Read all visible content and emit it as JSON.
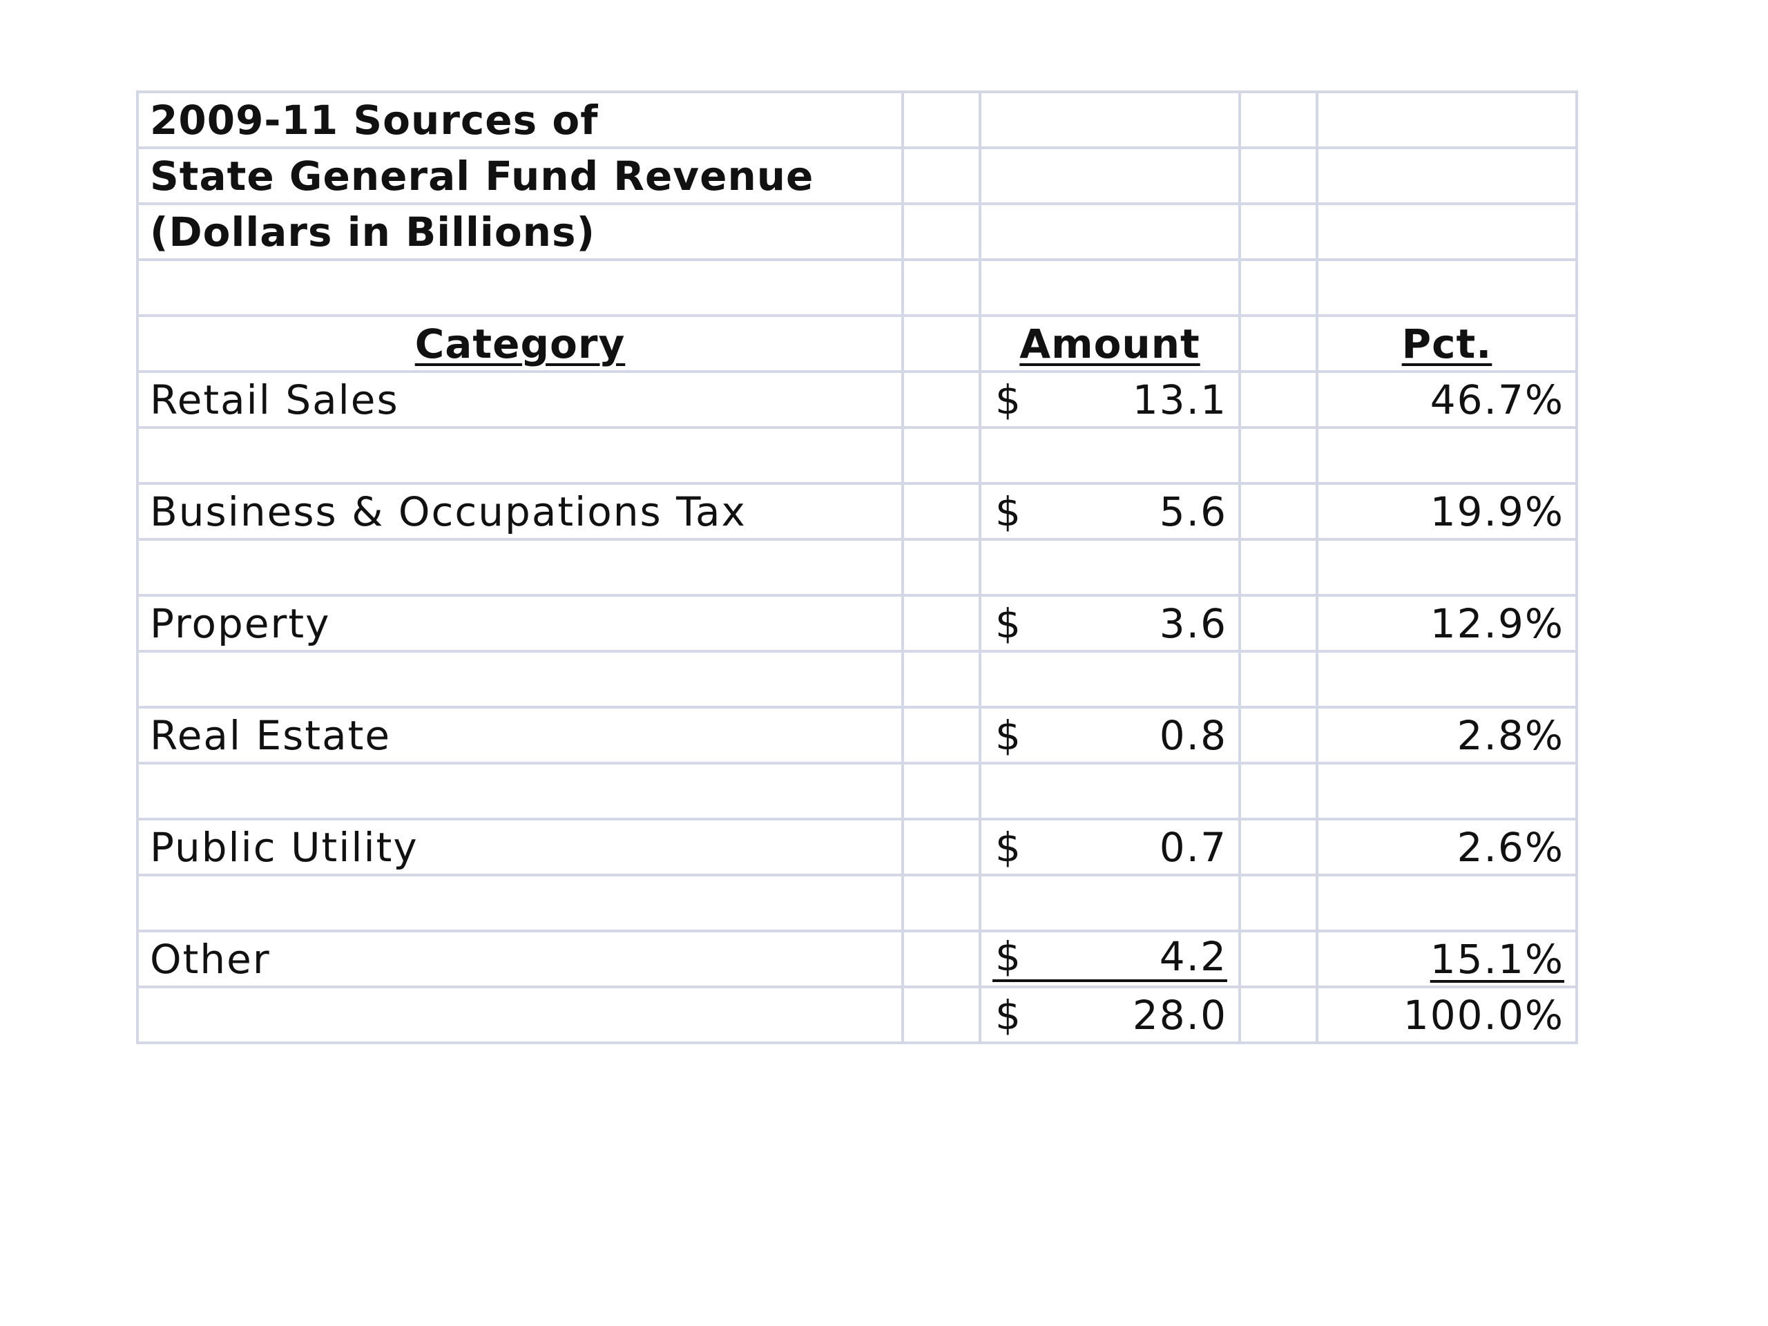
{
  "title": {
    "line1": "2009-11 Sources of",
    "line2": "State General Fund Revenue",
    "line3": "(Dollars in Billions)"
  },
  "headers": {
    "category": "Category",
    "amount": "Amount",
    "pct": "Pct."
  },
  "rows": [
    {
      "category": "Retail Sales",
      "currency": "$",
      "amount": "13.1",
      "pct": "46.7%"
    },
    {
      "category": "Business & Occupations Tax",
      "currency": "$",
      "amount": "5.6",
      "pct": "19.9%"
    },
    {
      "category": "Property",
      "currency": "$",
      "amount": "3.6",
      "pct": "12.9%"
    },
    {
      "category": "Real Estate",
      "currency": "$",
      "amount": "0.8",
      "pct": "2.8%"
    },
    {
      "category": "Public Utility",
      "currency": "$",
      "amount": "0.7",
      "pct": "2.6%"
    },
    {
      "category": "Other",
      "currency": "$",
      "amount": "4.2",
      "pct": "15.1%"
    }
  ],
  "total": {
    "currency": "$",
    "amount": "28.0",
    "pct": "100.0%"
  }
}
